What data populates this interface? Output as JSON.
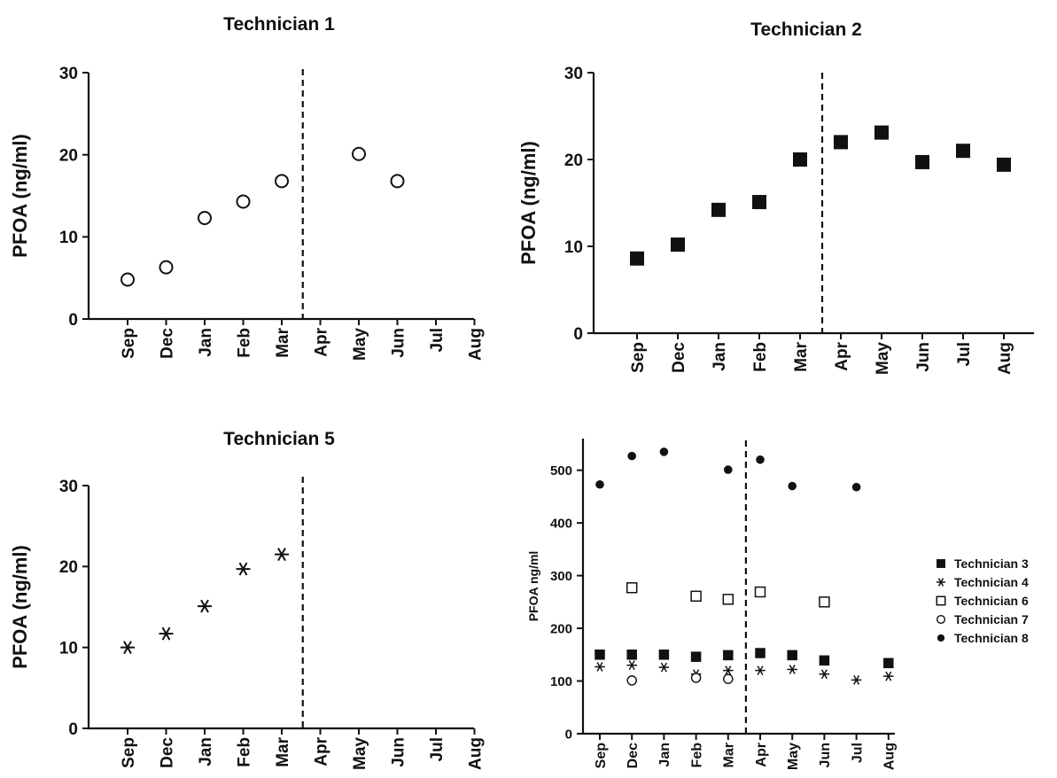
{
  "chart_data": [
    {
      "type": "scatter",
      "title": "Technician 1",
      "ylabel": "PFOA (ng/ml)",
      "categories": [
        "Sep",
        "Dec",
        "Jan",
        "Feb",
        "Mar",
        "Apr",
        "May",
        "Jun",
        "Jul",
        "Aug"
      ],
      "ylim": [
        0,
        30
      ],
      "yticks": [
        0,
        10,
        20,
        30
      ],
      "split_after": "Mar",
      "series": [
        {
          "marker": "open-circle",
          "values": [
            4.8,
            6.3,
            12.3,
            14.3,
            16.8,
            null,
            20.1,
            16.8,
            null,
            null
          ]
        }
      ]
    },
    {
      "type": "scatter",
      "title": "Technician 2",
      "ylabel": "PFOA (ng/ml)",
      "categories": [
        "Sep",
        "Dec",
        "Jan",
        "Feb",
        "Mar",
        "Apr",
        "May",
        "Jun",
        "Jul",
        "Aug"
      ],
      "ylim": [
        0,
        30
      ],
      "yticks": [
        0,
        10,
        20,
        30
      ],
      "split_after": "Mar",
      "series": [
        {
          "marker": "filled-square",
          "values": [
            8.6,
            10.2,
            14.2,
            15.1,
            20.0,
            22.0,
            23.1,
            19.7,
            21.0,
            19.4
          ]
        }
      ]
    },
    {
      "type": "scatter",
      "title": "Technician 5",
      "ylabel": "PFOA (ng/ml)",
      "categories": [
        "Sep",
        "Dec",
        "Jan",
        "Feb",
        "Mar",
        "Apr",
        "May",
        "Jun",
        "Jul",
        "Aug"
      ],
      "ylim": [
        0,
        30
      ],
      "yticks": [
        0,
        10,
        20,
        30
      ],
      "split_after": "Mar",
      "series": [
        {
          "marker": "asterisk",
          "values": [
            10.0,
            11.7,
            15.1,
            19.7,
            21.5,
            null,
            null,
            null,
            null,
            null
          ]
        }
      ]
    },
    {
      "type": "scatter",
      "title": "",
      "ylabel": "PFOA ng/ml",
      "categories": [
        "Sep",
        "Dec",
        "Jan",
        "Feb",
        "Mar",
        "Apr",
        "May",
        "Jun",
        "Jul",
        "Aug"
      ],
      "ylim": [
        0,
        560
      ],
      "yticks": [
        0,
        100,
        200,
        300,
        400,
        500
      ],
      "split_after": "Mar",
      "legend": "right",
      "series": [
        {
          "name": "Technician 3",
          "marker": "filled-square",
          "values": [
            150,
            150,
            150,
            146,
            149,
            153,
            149,
            139,
            null,
            134
          ]
        },
        {
          "name": "Technician 4",
          "marker": "asterisk",
          "values": [
            127,
            130,
            126,
            113,
            120,
            120,
            122,
            113,
            102,
            109
          ]
        },
        {
          "name": "Technician 6",
          "marker": "open-square",
          "values": [
            null,
            277,
            null,
            261,
            255,
            269,
            null,
            250,
            null,
            null
          ]
        },
        {
          "name": "Technician 7",
          "marker": "open-circle",
          "values": [
            null,
            101,
            null,
            106,
            104,
            null,
            null,
            null,
            null,
            null
          ]
        },
        {
          "name": "Technician 8",
          "marker": "filled-circle",
          "values": [
            473,
            527,
            535,
            null,
            501,
            520,
            470,
            null,
            468,
            null
          ]
        }
      ]
    }
  ]
}
